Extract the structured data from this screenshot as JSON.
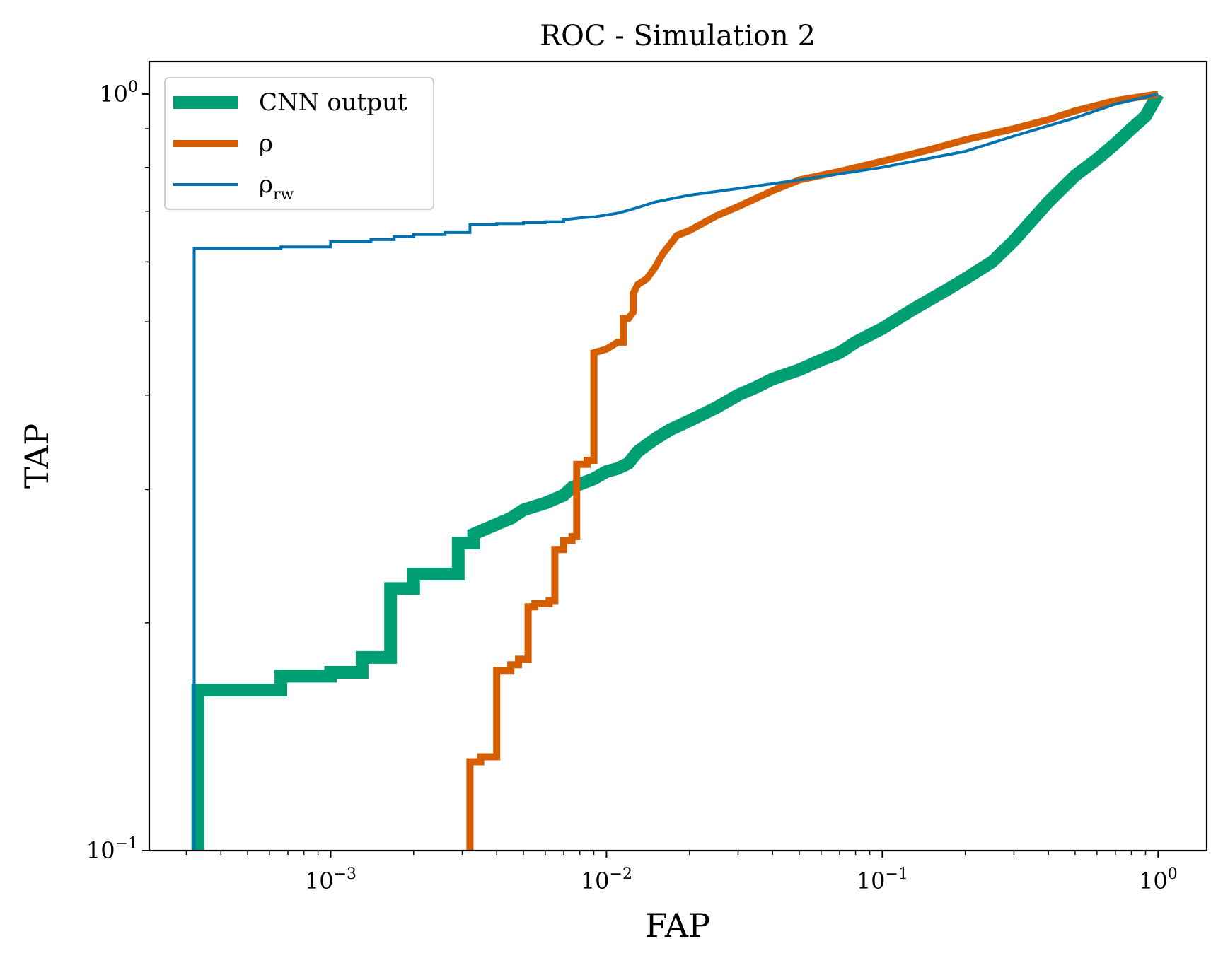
{
  "chart_data": {
    "type": "line",
    "title": "ROC - Simulation 2",
    "xlabel": "FAP",
    "ylabel": "TAP",
    "xscale": "log",
    "yscale": "log",
    "xlim": [
      0.00022,
      1.5
    ],
    "ylim": [
      0.1,
      1.0
    ],
    "x_ticks": [
      {
        "base": "10",
        "exp": "−3",
        "value": 0.001
      },
      {
        "base": "10",
        "exp": "−2",
        "value": 0.01
      },
      {
        "base": "10",
        "exp": "−1",
        "value": 0.1
      },
      {
        "base": "10",
        "exp": "0",
        "value": 1
      }
    ],
    "y_ticks": [
      {
        "base": "10",
        "exp": "−1",
        "value": 0.1
      },
      {
        "base": "10",
        "exp": "0",
        "value": 1
      }
    ],
    "legend": {
      "position": "top-left",
      "entries": [
        {
          "label": "CNN output",
          "series": 0
        },
        {
          "label": "ρ",
          "series": 1
        },
        {
          "label": "ρ",
          "sub": "rw",
          "series": 2
        }
      ]
    },
    "series": [
      {
        "name": "CNN output",
        "color": "#009e73",
        "width": 18,
        "x": [
          0.00033,
          0.00033,
          0.00066,
          0.00066,
          0.001,
          0.001,
          0.0013,
          0.0013,
          0.00165,
          0.00165,
          0.002,
          0.002,
          0.0029,
          0.0029,
          0.0033,
          0.0033,
          0.004,
          0.0045,
          0.005,
          0.006,
          0.007,
          0.0075,
          0.008,
          0.009,
          0.01,
          0.011,
          0.012,
          0.013,
          0.015,
          0.017,
          0.02,
          0.025,
          0.03,
          0.035,
          0.04,
          0.05,
          0.06,
          0.07,
          0.08,
          0.1,
          0.13,
          0.17,
          0.2,
          0.25,
          0.3,
          0.4,
          0.5,
          0.6,
          0.7,
          0.8,
          0.9,
          1.0
        ],
        "y": [
          0.1,
          0.163,
          0.163,
          0.17,
          0.17,
          0.172,
          0.172,
          0.18,
          0.18,
          0.222,
          0.222,
          0.232,
          0.232,
          0.255,
          0.255,
          0.262,
          0.27,
          0.275,
          0.282,
          0.288,
          0.295,
          0.302,
          0.305,
          0.31,
          0.317,
          0.32,
          0.325,
          0.337,
          0.35,
          0.36,
          0.37,
          0.385,
          0.4,
          0.41,
          0.42,
          0.432,
          0.445,
          0.455,
          0.47,
          0.49,
          0.52,
          0.55,
          0.57,
          0.6,
          0.64,
          0.72,
          0.78,
          0.82,
          0.86,
          0.9,
          0.935,
          1.0
        ]
      },
      {
        "name": "ρ",
        "color": "#d55e00",
        "width": 10,
        "x": [
          0.0032,
          0.0032,
          0.0035,
          0.0035,
          0.004,
          0.004,
          0.0045,
          0.0045,
          0.0048,
          0.0048,
          0.0052,
          0.0052,
          0.0055,
          0.0055,
          0.0062,
          0.0062,
          0.0065,
          0.0065,
          0.007,
          0.007,
          0.0075,
          0.0075,
          0.0078,
          0.0078,
          0.0085,
          0.0085,
          0.009,
          0.009,
          0.01,
          0.011,
          0.0115,
          0.0115,
          0.012,
          0.0125,
          0.0125,
          0.013,
          0.014,
          0.015,
          0.016,
          0.018,
          0.02,
          0.025,
          0.03,
          0.04,
          0.05,
          0.07,
          0.1,
          0.15,
          0.2,
          0.3,
          0.4,
          0.5,
          0.7,
          1.0
        ],
        "y": [
          0.1,
          0.131,
          0.131,
          0.133,
          0.133,
          0.173,
          0.173,
          0.176,
          0.176,
          0.179,
          0.179,
          0.21,
          0.21,
          0.212,
          0.212,
          0.214,
          0.214,
          0.25,
          0.25,
          0.257,
          0.257,
          0.26,
          0.26,
          0.324,
          0.324,
          0.328,
          0.328,
          0.455,
          0.46,
          0.47,
          0.47,
          0.505,
          0.505,
          0.515,
          0.545,
          0.56,
          0.57,
          0.59,
          0.615,
          0.65,
          0.66,
          0.69,
          0.71,
          0.745,
          0.77,
          0.79,
          0.815,
          0.845,
          0.87,
          0.9,
          0.925,
          0.95,
          0.98,
          1.0
        ]
      },
      {
        "name": "ρrw",
        "color": "#0072b2",
        "width": 4,
        "x": [
          0.00032,
          0.00032,
          0.00066,
          0.00066,
          0.001,
          0.001,
          0.0014,
          0.0014,
          0.0017,
          0.0017,
          0.002,
          0.002,
          0.0026,
          0.0026,
          0.0032,
          0.0032,
          0.004,
          0.004,
          0.005,
          0.005,
          0.006,
          0.006,
          0.007,
          0.007,
          0.008,
          0.009,
          0.01,
          0.011,
          0.012,
          0.013,
          0.015,
          0.02,
          0.03,
          0.05,
          0.1,
          0.2,
          0.3,
          0.5,
          0.7,
          1.0
        ],
        "y": [
          0.1,
          0.625,
          0.625,
          0.628,
          0.628,
          0.638,
          0.638,
          0.642,
          0.642,
          0.648,
          0.648,
          0.652,
          0.652,
          0.656,
          0.656,
          0.672,
          0.672,
          0.674,
          0.674,
          0.676,
          0.676,
          0.678,
          0.678,
          0.682,
          0.686,
          0.688,
          0.692,
          0.696,
          0.702,
          0.708,
          0.72,
          0.735,
          0.75,
          0.77,
          0.8,
          0.84,
          0.88,
          0.93,
          0.97,
          1.0
        ]
      }
    ]
  }
}
